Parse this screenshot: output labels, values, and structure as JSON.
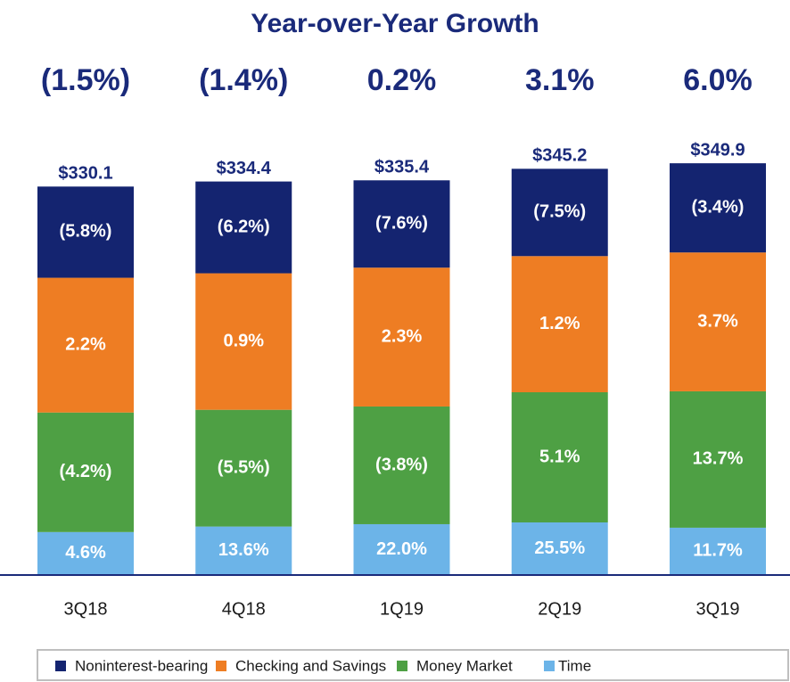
{
  "chart_data": {
    "type": "stacked_bar",
    "title": "Year-over-Year Growth",
    "categories": [
      "3Q18",
      "4Q18",
      "1Q19",
      "2Q19",
      "3Q19"
    ],
    "total_growth": [
      "(1.5%)",
      "(1.4%)",
      "0.2%",
      "3.1%",
      "6.0%"
    ],
    "totals": [
      330.1,
      334.4,
      335.4,
      345.2,
      349.9
    ],
    "total_labels": [
      "$330.1",
      "$334.4",
      "$335.4",
      "$345.2",
      "$349.9"
    ],
    "series": [
      {
        "name": "Time",
        "color": "#6cb4e8",
        "values": [
          36.5,
          41.2,
          43.2,
          44.7,
          40.2
        ],
        "growth_labels": [
          "4.6%",
          "13.6%",
          "22.0%",
          "25.5%",
          "11.7%"
        ]
      },
      {
        "name": "Money Market",
        "color": "#4ea044",
        "values": [
          101.6,
          99.2,
          100.0,
          110.6,
          115.9
        ],
        "growth_labels": [
          "(4.2%)",
          "(5.5%)",
          "(3.8%)",
          "5.1%",
          "13.7%"
        ]
      },
      {
        "name": "Checking and Savings",
        "color": "#ee7d23",
        "values": [
          114.5,
          116.0,
          118.0,
          115.7,
          118.0
        ],
        "growth_labels": [
          "2.2%",
          "0.9%",
          "2.3%",
          "1.2%",
          "3.7%"
        ]
      },
      {
        "name": "Noninterest-bearing",
        "color": "#142470",
        "values": [
          77.5,
          78.0,
          74.2,
          74.2,
          75.8
        ],
        "growth_labels": [
          "(5.8%)",
          "(6.2%)",
          "(7.6%)",
          "(7.5%)",
          "(3.4%)"
        ]
      }
    ],
    "legend_order": [
      3,
      2,
      1,
      0
    ]
  }
}
